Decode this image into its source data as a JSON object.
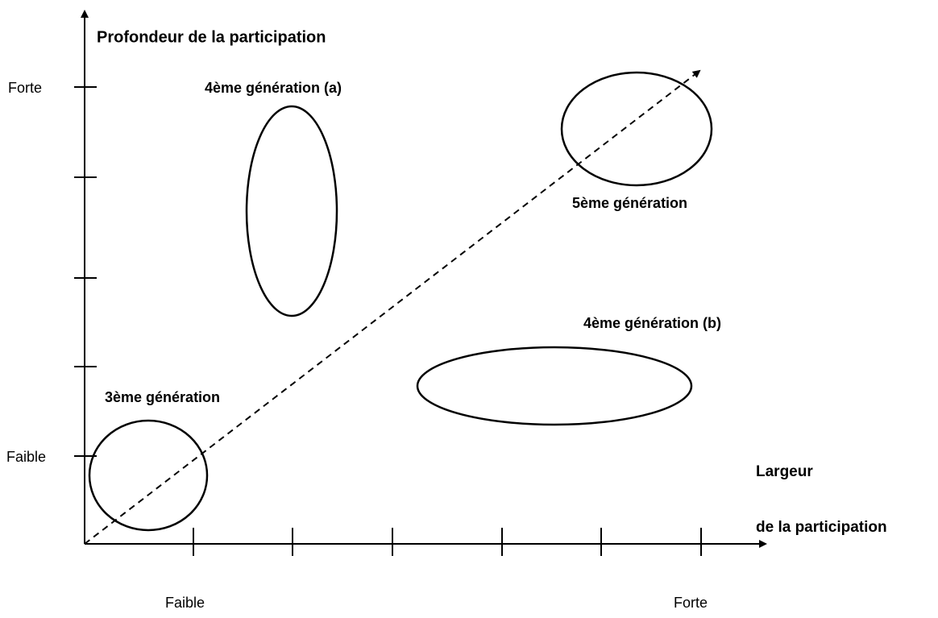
{
  "y_axis": {
    "label": "Profondeur de la participation",
    "high": "Forte",
    "low": "Faible"
  },
  "x_axis": {
    "label_line1": "Largeur",
    "label_line2": "de la participation",
    "low": "Faible",
    "high": "Forte"
  },
  "nodes": [
    {
      "label": "3ème génération"
    },
    {
      "label": "4ème génération (a)"
    },
    {
      "label": "4ème génération (b)"
    },
    {
      "label": "5ème génération"
    }
  ]
}
